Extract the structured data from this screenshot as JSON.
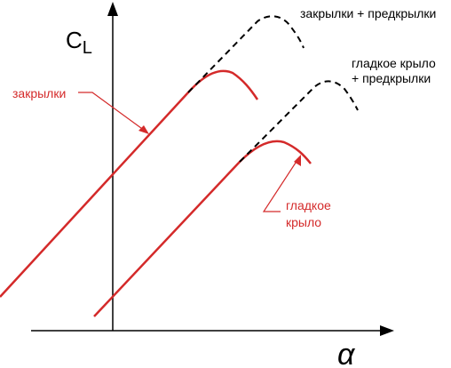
{
  "axes": {
    "y_label_main": "C",
    "y_label_sub": "L",
    "x_label": "α"
  },
  "labels": {
    "flaps_slats": "закрылки + предкрылки",
    "plain_slats_line1": "гладкое крыло",
    "plain_slats_line2": "+ предкрылки",
    "flaps": "закрылки",
    "plain_line1": "гладкое",
    "plain_line2": "крыло"
  },
  "colors": {
    "curve_red": "#d42a2a",
    "curve_dashed": "#000000",
    "axis": "#000000"
  }
}
